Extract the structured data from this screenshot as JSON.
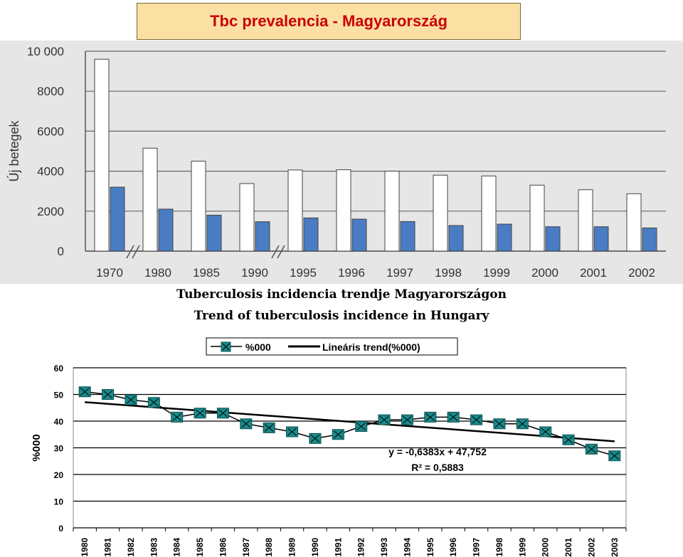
{
  "header": {
    "title": "Tbc prevalencia  - Magyarország"
  },
  "chart_data": [
    {
      "type": "bar",
      "title": "",
      "xlabel": "",
      "ylabel": "Új betegek",
      "ylim": [
        0,
        10000
      ],
      "yticks": [
        "0",
        "2000",
        "4000",
        "6000",
        "8000",
        "10 000"
      ],
      "categories": [
        "1970",
        "1980",
        "1985",
        "1990",
        "1995",
        "1996",
        "1997",
        "1998",
        "1999",
        "2000",
        "2001",
        "2002"
      ],
      "series": [
        {
          "values": [
            9600,
            5150,
            4500,
            3380,
            4060,
            4070,
            4000,
            3800,
            3760,
            3300,
            3070,
            2870
          ],
          "color": "#ffffff"
        },
        {
          "values": [
            3200,
            2100,
            1800,
            1470,
            1660,
            1600,
            1480,
            1280,
            1350,
            1220,
            1220,
            1160
          ],
          "color": "#4a7cc4"
        }
      ],
      "grid": true,
      "axis_breaks_after": [
        "1970",
        "1990"
      ],
      "background": "#e6e6e6"
    },
    {
      "type": "line",
      "title": "Tuberculosis incidencia trendje Magyarországon",
      "subtitle": "Trend of tuberculosis incidence in Hungary",
      "ylabel": "%000",
      "xlabel": "",
      "ylim": [
        0,
        60
      ],
      "yticks": [
        "0",
        "10",
        "20",
        "30",
        "40",
        "50",
        "60"
      ],
      "x": [
        "1980",
        "1981",
        "1982",
        "1983",
        "1984",
        "1985",
        "1986",
        "1987",
        "1988",
        "1989",
        "1990",
        "1991",
        "1992",
        "1993",
        "1994",
        "1995",
        "1996",
        "1997",
        "1998",
        "1999",
        "2000",
        "2001",
        "2002",
        "2003"
      ],
      "series": [
        {
          "name": "%000",
          "values": [
            51,
            50,
            48,
            47,
            41.5,
            43,
            43,
            39,
            37.5,
            36,
            33.5,
            35,
            38,
            40.5,
            40.5,
            41.5,
            41.5,
            40.5,
            39,
            39,
            36,
            33,
            29.5,
            27
          ],
          "color": "#1a8a8a"
        },
        {
          "name": "Lineáris trend(%000)",
          "trend": {
            "slope": -0.6383,
            "intercept": 47.752
          },
          "color": "#000000"
        }
      ],
      "annotations": [
        "y = -0,6383x + 47,752",
        "R² = 0,5883"
      ],
      "legend": "top",
      "grid": true
    }
  ]
}
